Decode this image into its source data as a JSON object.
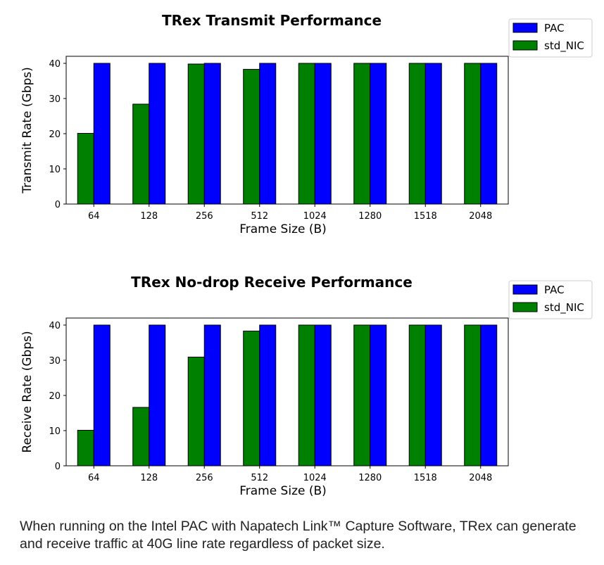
{
  "charts": [
    {
      "type": "bar",
      "title": "TRex Transmit Performance",
      "xlabel": "Frame Size (B)",
      "ylabel": "Transmit Rate (Gbps)",
      "categories": [
        "64",
        "128",
        "256",
        "512",
        "1024",
        "1280",
        "1518",
        "2048"
      ],
      "yticks": [
        "0",
        "10",
        "20",
        "30",
        "40"
      ],
      "ylim": [
        0,
        42
      ],
      "legend_position": "top-right",
      "series": [
        {
          "name": "std_NIC",
          "color": "#008000",
          "values": [
            20.1,
            28.4,
            39.8,
            38.3,
            40,
            40,
            40,
            40
          ]
        },
        {
          "name": "PAC",
          "color": "#0000ff",
          "values": [
            40,
            40,
            40,
            40,
            40,
            40,
            40,
            40
          ]
        }
      ]
    },
    {
      "type": "bar",
      "title": "TRex No-drop Receive Performance",
      "xlabel": "Frame Size (B)",
      "ylabel": "Receive Rate (Gbps)",
      "categories": [
        "64",
        "128",
        "256",
        "512",
        "1024",
        "1280",
        "1518",
        "2048"
      ],
      "yticks": [
        "0",
        "10",
        "20",
        "30",
        "40"
      ],
      "ylim": [
        0,
        42
      ],
      "legend_position": "top-right",
      "series": [
        {
          "name": "std_NIC",
          "color": "#008000",
          "values": [
            10.1,
            16.6,
            30.9,
            38.3,
            40,
            40,
            40,
            40
          ]
        },
        {
          "name": "PAC",
          "color": "#0000ff",
          "values": [
            40,
            40,
            40,
            40,
            40,
            40,
            40,
            40
          ]
        }
      ]
    }
  ],
  "caption": "When running on the Intel PAC with Napatech Link™ Capture Software, TRex can generate and receive traffic at 40G line rate regardless of packet size."
}
